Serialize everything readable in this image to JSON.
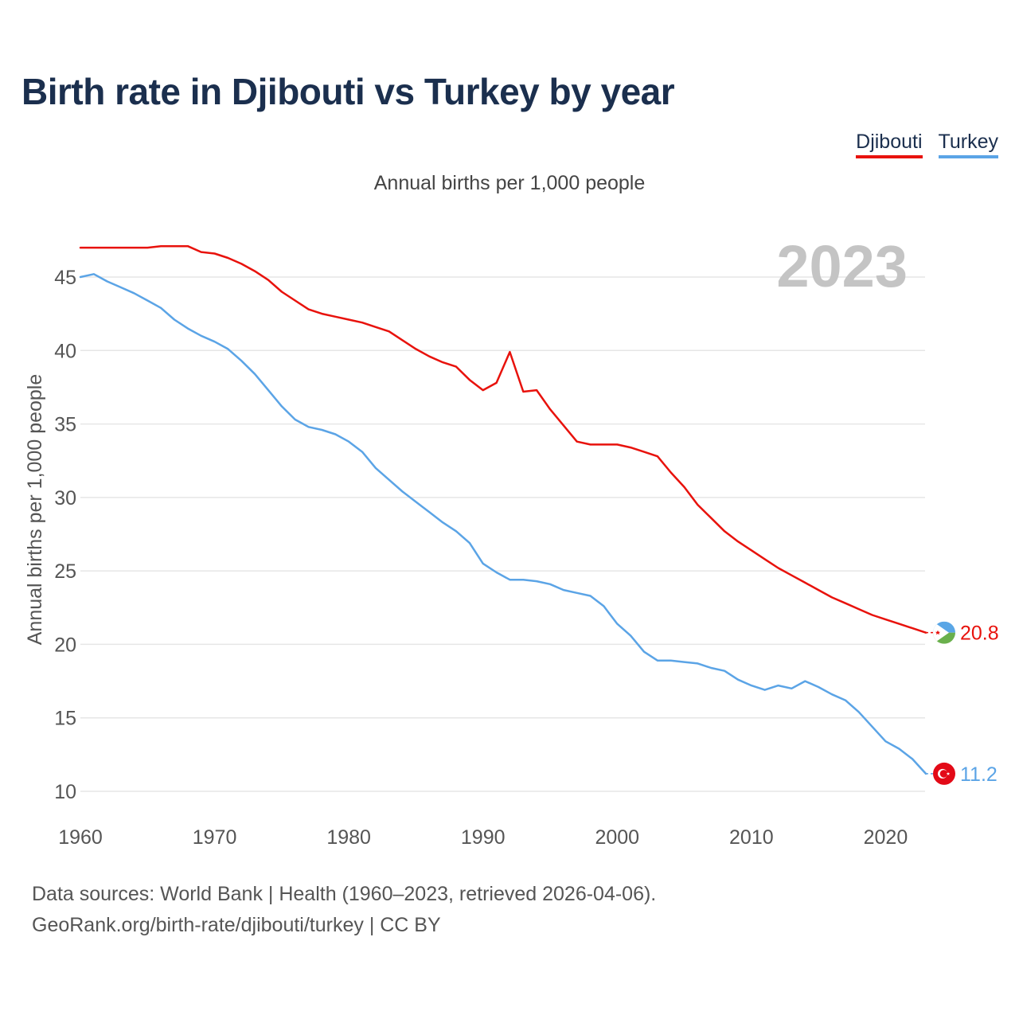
{
  "title": "Birth rate in Djibouti vs Turkey by year",
  "subtitle": "Annual births per 1,000 people",
  "legend": {
    "djibouti": "Djibouti",
    "turkey": "Turkey"
  },
  "footer": {
    "line1": "Data sources: World Bank | Health (1960–2023, retrieved 2026-04-06).",
    "line2": "GeoRank.org/birth-rate/djibouti/turkey | CC BY"
  },
  "colors": {
    "djibouti": "#e8120c",
    "turkey": "#5ba4e6",
    "year_watermark": "#c4c4c4",
    "grid": "#e6e6e6"
  },
  "chart_data": {
    "type": "line",
    "title": "Birth rate in Djibouti vs Turkey by year",
    "ylabel": "Annual births per 1,000 people",
    "xlabel": "",
    "year_label": "2023",
    "xlim": [
      1960,
      2023
    ],
    "ylim": [
      10,
      46
    ],
    "x_ticks": [
      1960,
      1970,
      1980,
      1990,
      2000,
      2010,
      2020
    ],
    "y_ticks": [
      10,
      15,
      20,
      25,
      30,
      35,
      40,
      45
    ],
    "grid": true,
    "x": [
      1960,
      1961,
      1962,
      1963,
      1964,
      1965,
      1966,
      1967,
      1968,
      1969,
      1970,
      1971,
      1972,
      1973,
      1974,
      1975,
      1976,
      1977,
      1978,
      1979,
      1980,
      1981,
      1982,
      1983,
      1984,
      1985,
      1986,
      1987,
      1988,
      1989,
      1990,
      1991,
      1992,
      1993,
      1994,
      1995,
      1996,
      1997,
      1998,
      1999,
      2000,
      2001,
      2002,
      2003,
      2004,
      2005,
      2006,
      2007,
      2008,
      2009,
      2010,
      2011,
      2012,
      2013,
      2014,
      2015,
      2016,
      2017,
      2018,
      2019,
      2020,
      2021,
      2022,
      2023
    ],
    "series": [
      {
        "name": "Djibouti",
        "end_label": "20.8",
        "values": [
          47.0,
          47.0,
          47.0,
          47.0,
          47.0,
          47.0,
          47.1,
          47.1,
          47.1,
          46.7,
          46.6,
          46.3,
          45.9,
          45.4,
          44.8,
          44.0,
          43.4,
          42.8,
          42.5,
          42.3,
          42.1,
          41.9,
          41.6,
          41.3,
          40.7,
          40.1,
          39.6,
          39.2,
          38.9,
          38.0,
          37.3,
          37.8,
          39.9,
          37.2,
          37.3,
          36.0,
          34.9,
          33.8,
          33.6,
          33.6,
          33.6,
          33.4,
          33.1,
          32.8,
          31.7,
          30.7,
          29.5,
          28.6,
          27.7,
          27.0,
          26.4,
          25.8,
          25.2,
          24.7,
          24.2,
          23.7,
          23.2,
          22.8,
          22.4,
          22.0,
          21.7,
          21.4,
          21.1,
          20.8
        ]
      },
      {
        "name": "Turkey",
        "end_label": "11.2",
        "values": [
          45.0,
          45.2,
          44.7,
          44.3,
          43.9,
          43.4,
          42.9,
          42.1,
          41.5,
          41.0,
          40.6,
          40.1,
          39.3,
          38.4,
          37.3,
          36.2,
          35.3,
          34.8,
          34.6,
          34.3,
          33.8,
          33.1,
          32.0,
          31.2,
          30.4,
          29.7,
          29.0,
          28.3,
          27.7,
          26.9,
          25.5,
          24.9,
          24.4,
          24.4,
          24.3,
          24.1,
          23.7,
          23.5,
          23.3,
          22.6,
          21.4,
          20.6,
          19.5,
          18.9,
          18.9,
          18.8,
          18.7,
          18.4,
          18.2,
          17.6,
          17.2,
          16.9,
          17.2,
          17.0,
          17.5,
          17.1,
          16.6,
          16.2,
          15.4,
          14.4,
          13.4,
          12.9,
          12.2,
          11.2
        ]
      }
    ]
  }
}
